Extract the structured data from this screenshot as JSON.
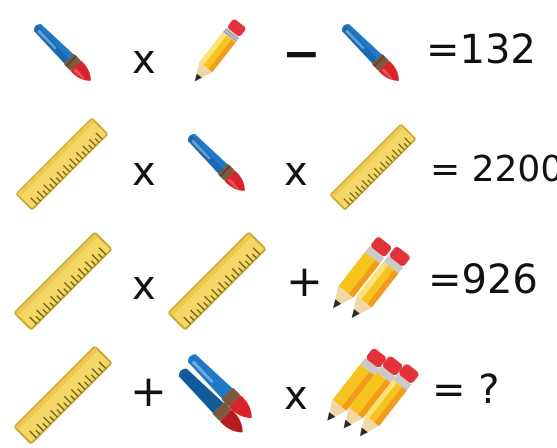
{
  "colors": {
    "brush_blue": "#1f78c8",
    "brush_blue_dark": "#125a99",
    "brush_ferrule": "#7a5a3a",
    "brush_tip": "#d9232b",
    "pencil_yellow": "#f7c41f",
    "pencil_orange": "#f39b1a",
    "pencil_eraser": "#e2333b",
    "pencil_band": "#c9c9c9",
    "pencil_wood": "#f2d7a6",
    "pencil_lead": "#2a2a2a",
    "ruler_yellow": "#f5d766",
    "ruler_edge": "#c9a52a",
    "ruler_tick": "#6b5a1a"
  },
  "puzzle": {
    "rows": [
      {
        "terms": [
          "paintbrush",
          "pencil",
          "paintbrush"
        ],
        "operators": [
          "x",
          "−"
        ],
        "result": "=132"
      },
      {
        "terms": [
          "ruler",
          "paintbrush",
          "ruler"
        ],
        "operators": [
          "x",
          "x"
        ],
        "result": "= 2200"
      },
      {
        "terms": [
          "ruler",
          "ruler",
          "pencil-bundle-2"
        ],
        "operators": [
          "x",
          "+"
        ],
        "result": "=926"
      },
      {
        "terms": [
          "ruler",
          "paintbrush-bundle-2",
          "pencil-bundle-3"
        ],
        "operators": [
          "+",
          "x"
        ],
        "result": "= ?"
      }
    ]
  }
}
